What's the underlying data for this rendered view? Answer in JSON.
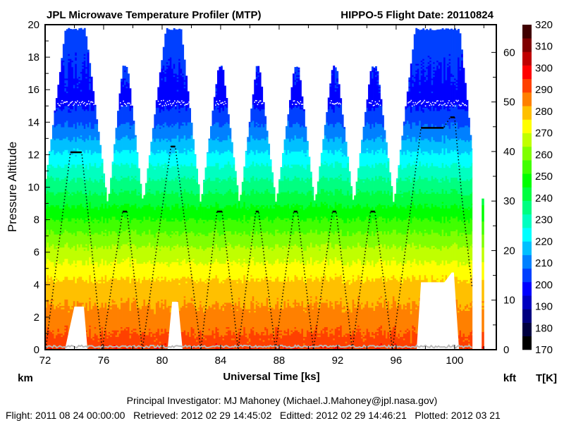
{
  "chart_data": {
    "type": "heatmap",
    "title": "JPL Microwave Temperature Profiler (MTP)",
    "subtitle": "HIPPO-5  Flight Date: 20110824",
    "xlabel": "Universal Time [ks]",
    "ylabel": "Pressure Altitude",
    "y_unit_left": "km",
    "y_unit_right": "kft",
    "colorbar_label": "T[K]",
    "xlim": [
      72,
      102.85
    ],
    "ylim": [
      0,
      20
    ],
    "ylim_right": [
      0,
      65.6
    ],
    "x_ticks": [
      "72",
      "76",
      "80",
      "84",
      "88",
      "92",
      "96",
      "100"
    ],
    "x_tick_values": [
      72,
      76,
      80,
      84,
      88,
      92,
      96,
      100
    ],
    "x_minor_step": 2,
    "y_ticks": [
      "0",
      "2",
      "4",
      "6",
      "8",
      "10",
      "12",
      "14",
      "16",
      "18",
      "20"
    ],
    "y_tick_values": [
      0,
      2,
      4,
      6,
      8,
      10,
      12,
      14,
      16,
      18,
      20
    ],
    "y_right_ticks": [
      "0",
      "10",
      "20",
      "30",
      "40",
      "50",
      "60"
    ],
    "y_right_tick_values": [
      0,
      10,
      20,
      30,
      40,
      50,
      60
    ],
    "colorbar": {
      "range": [
        170,
        320
      ],
      "tick_labels": [
        "170",
        "180",
        "190",
        "200",
        "210",
        "220",
        "230",
        "240",
        "250",
        "260",
        "270",
        "280",
        "290",
        "300",
        "310",
        "320"
      ],
      "tick_values": [
        170,
        180,
        190,
        200,
        210,
        220,
        230,
        240,
        250,
        260,
        270,
        280,
        290,
        300,
        310,
        320
      ],
      "colors": [
        "#000000",
        "#000040",
        "#000080",
        "#0000c0",
        "#0000ff",
        "#0040ff",
        "#0080ff",
        "#00c0ff",
        "#00ffff",
        "#00ffc0",
        "#00ff80",
        "#00ff40",
        "#00ff00",
        "#40ff00",
        "#80ff00",
        "#c0ff00",
        "#ffff00",
        "#ffc000",
        "#ff8000",
        "#ff4000",
        "#ff0000",
        "#c00000",
        "#800000",
        "#400000"
      ]
    },
    "mean_temperature_profile_km_K": [
      [
        0,
        292
      ],
      [
        2,
        285
      ],
      [
        4,
        278
      ],
      [
        6,
        266
      ],
      [
        8,
        251
      ],
      [
        10,
        236
      ],
      [
        12,
        221
      ],
      [
        13,
        213
      ],
      [
        14,
        206
      ],
      [
        15.2,
        199
      ],
      [
        17,
        201
      ],
      [
        19,
        204
      ],
      [
        20,
        205
      ]
    ],
    "retrieval_top_envelope_ks_km": [
      [
        72,
        10.2
      ],
      [
        73.4,
        19.8
      ],
      [
        74.75,
        19.8
      ],
      [
        76.3,
        9
      ],
      [
        77.3,
        17.5
      ],
      [
        77.65,
        17.5
      ],
      [
        78.7,
        9
      ],
      [
        80.25,
        19.8
      ],
      [
        81.3,
        19.8
      ],
      [
        82.65,
        9
      ],
      [
        83.85,
        17.5
      ],
      [
        84.15,
        17.5
      ],
      [
        85.3,
        9
      ],
      [
        86.45,
        17.5
      ],
      [
        86.65,
        17.5
      ],
      [
        87.8,
        9
      ],
      [
        89.05,
        17.5
      ],
      [
        89.35,
        17.5
      ],
      [
        90.45,
        9
      ],
      [
        91.65,
        17.5
      ],
      [
        91.95,
        17.5
      ],
      [
        93.1,
        9
      ],
      [
        94.3,
        17.5
      ],
      [
        94.7,
        17.5
      ],
      [
        95.85,
        9
      ],
      [
        97.3,
        19.8
      ],
      [
        100.35,
        19.8
      ],
      [
        101.2,
        12.5
      ]
    ],
    "retrieval_end_ks": 101.2,
    "extra_strip_ks_km": [
      101.85,
      102.0,
      9.3
    ],
    "below_aircraft_gaps": [
      {
        "points": [
          [
            73.35,
            0
          ],
          [
            74.0,
            2.65
          ],
          [
            74.65,
            2.65
          ],
          [
            74.9,
            0
          ]
        ]
      },
      {
        "points": [
          [
            80.37,
            0
          ],
          [
            80.68,
            2.95
          ],
          [
            81.09,
            2.95
          ],
          [
            81.4,
            0
          ]
        ]
      },
      {
        "points": [
          [
            97.4,
            0
          ],
          [
            97.7,
            4.15
          ],
          [
            99.3,
            4.15
          ],
          [
            99.8,
            4.75
          ],
          [
            99.95,
            4.75
          ],
          [
            100.3,
            0
          ]
        ]
      }
    ],
    "tropopause_km": 15.2,
    "aircraft_altitude_ks_km": [
      [
        72.05,
        0.1
      ],
      [
        73.73,
        12.15
      ],
      [
        74.5,
        12.15
      ],
      [
        75.9,
        0
      ],
      [
        77.3,
        8.5
      ],
      [
        77.6,
        8.5
      ],
      [
        78.65,
        0
      ],
      [
        80.6,
        12.5
      ],
      [
        80.9,
        12.5
      ],
      [
        82.65,
        0
      ],
      [
        83.75,
        8.5
      ],
      [
        84.1,
        8.5
      ],
      [
        85.2,
        0
      ],
      [
        86.4,
        8.5
      ],
      [
        86.6,
        8.5
      ],
      [
        87.75,
        0
      ],
      [
        89.0,
        8.5
      ],
      [
        89.25,
        8.5
      ],
      [
        90.35,
        0
      ],
      [
        91.65,
        8.5
      ],
      [
        91.9,
        8.5
      ],
      [
        93.0,
        0
      ],
      [
        94.25,
        8.5
      ],
      [
        94.55,
        8.5
      ],
      [
        95.75,
        0
      ],
      [
        97.7,
        13.65
      ],
      [
        99.25,
        13.65
      ],
      [
        99.7,
        14.3
      ],
      [
        100.0,
        14.3
      ],
      [
        100.5,
        9.3
      ],
      [
        101.2,
        3.8
      ]
    ],
    "grid": false
  },
  "footer": {
    "investigator": "Principal Investigator: MJ Mahoney (Michael.J.Mahoney@jpl.nasa.gov)",
    "dates": "Flight: 2011 08 24 00:00:00   Retrieved: 2012 02 29 14:45:02   Editted: 2012 02 29 14:46:21   Plotted: 2012 03 21"
  }
}
